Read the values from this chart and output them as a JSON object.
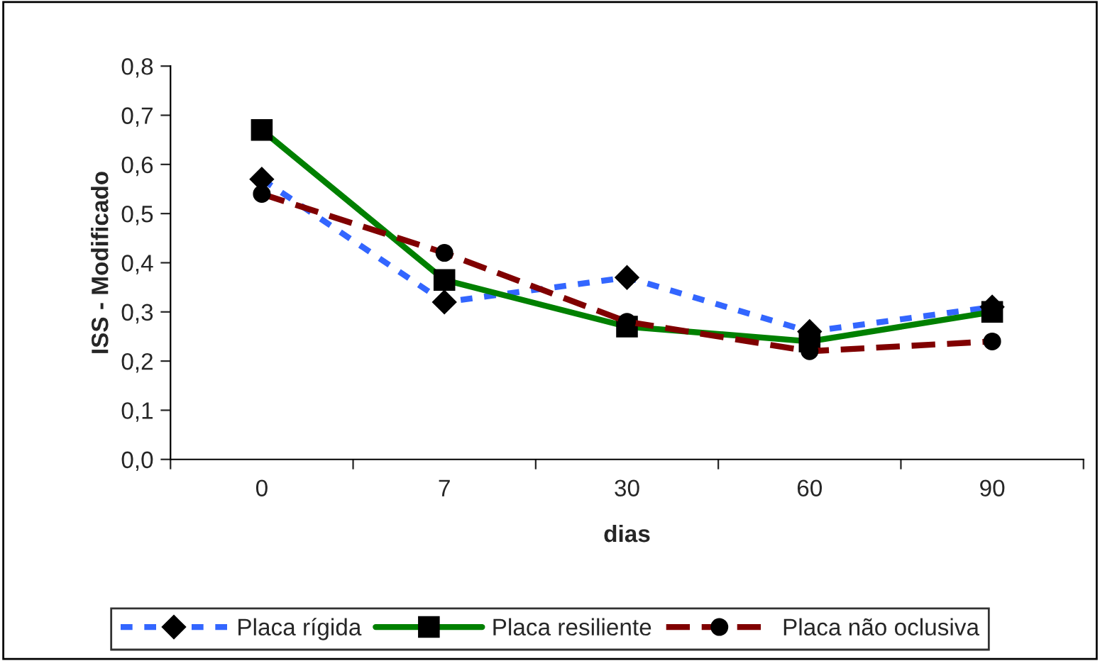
{
  "chart_data": {
    "type": "line",
    "xlabel": "dias",
    "ylabel": "ISS - Modificado",
    "categories": [
      "0",
      "7",
      "30",
      "60",
      "90"
    ],
    "ylim": [
      0,
      0.8
    ],
    "yticks": [
      {
        "value": 0,
        "label": "0,0"
      },
      {
        "value": 0.1,
        "label": "0,1"
      },
      {
        "value": 0.2,
        "label": "0,2"
      },
      {
        "value": 0.3,
        "label": "0,3"
      },
      {
        "value": 0.4,
        "label": "0,4"
      },
      {
        "value": 0.5,
        "label": "0,5"
      },
      {
        "value": 0.6,
        "label": "0,6"
      },
      {
        "value": 0.7,
        "label": "0,7"
      },
      {
        "value": 0.8,
        "label": "0,8"
      }
    ],
    "grid": false,
    "legend": "bottom",
    "series": [
      {
        "name": "Placa rígida",
        "color": "#3366ff",
        "marker": "diamond",
        "line_style": "dotted",
        "values": [
          0.57,
          0.32,
          0.37,
          0.26,
          0.31
        ]
      },
      {
        "name": "Placa resiliente",
        "color": "#008000",
        "marker": "square",
        "line_style": "solid",
        "values": [
          0.67,
          0.365,
          0.27,
          0.24,
          0.3
        ]
      },
      {
        "name": "Placa não oclusiva",
        "color": "#800000",
        "marker": "circle",
        "line_style": "dashed",
        "values": [
          0.54,
          0.42,
          0.28,
          0.22,
          0.24
        ]
      }
    ]
  }
}
